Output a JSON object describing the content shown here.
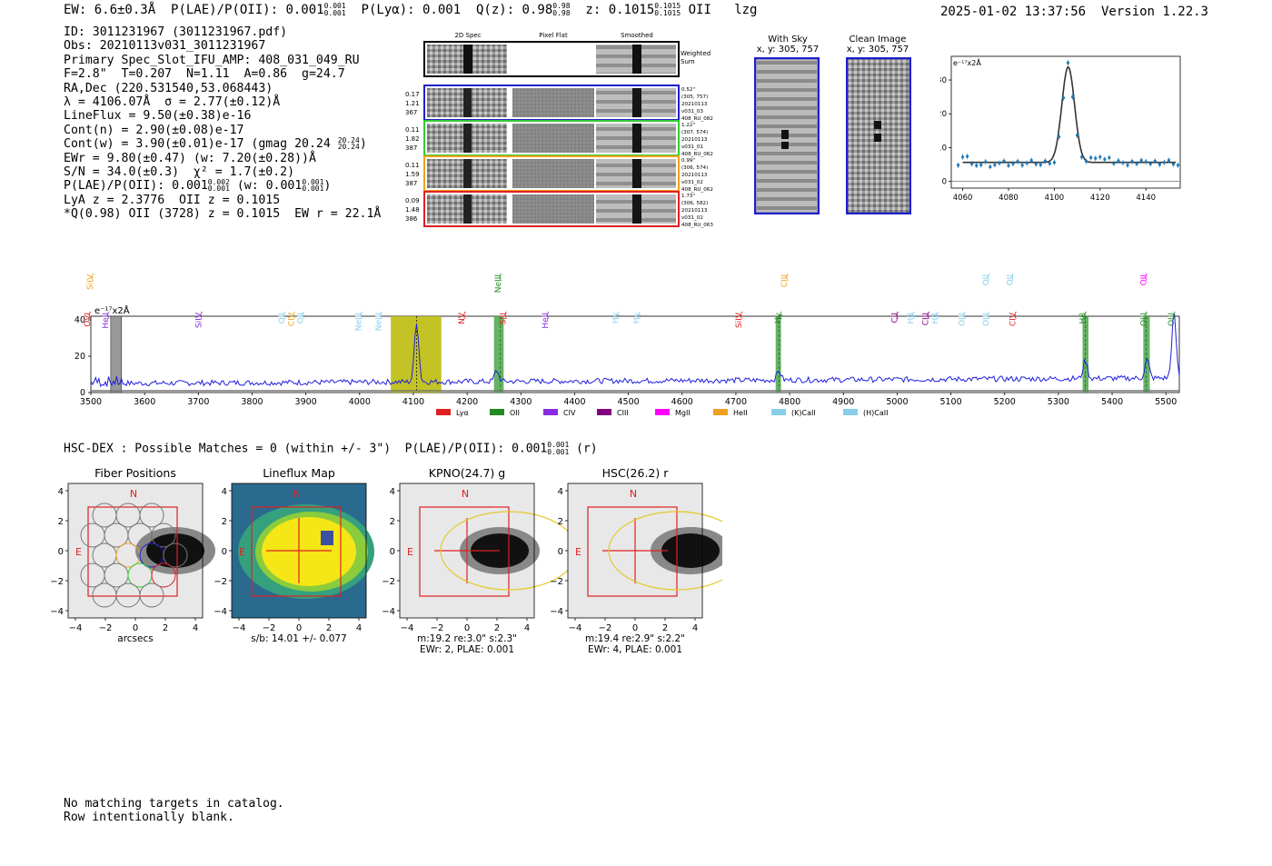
{
  "header": {
    "ew": "EW: 6.6±0.3Å",
    "plae": "P(LAE)/P(OII): 0.001",
    "plae_sup": "0.001",
    "plae_sub": "0.001",
    "plya": "P(Lyα): 0.001",
    "qz": "Q(z): 0.98",
    "qz_sup": "0.98",
    "qz_sub": "0.98",
    "z": "z: 0.1015",
    "z_sup": "0.1015",
    "z_sub": "0.1015",
    "line": "OII",
    "tag": "lzg",
    "timestamp": "2025-01-02 13:37:56",
    "version": "Version 1.22.3"
  },
  "info": {
    "id": "ID: 3011231967 (3011231967.pdf)",
    "obs": "Obs: 20210113v031_3011231967",
    "slot": "Primary Spec_Slot_IFU_AMP: 408_031_049_RU",
    "fwhm": "F=2.8\"  T=0.207  N=1.11  A=0.86  g=24.7",
    "radec": "RA,Dec (220.531540,53.068443)",
    "lambda": "λ = 4106.07Å  σ = 2.77(±0.12)Å",
    "flux": "LineFlux = 9.50(±0.38)e-16",
    "contn": "Cont(n) = 2.90(±0.08)e-17",
    "contw": "Cont(w) = 3.90(±0.01)e-17 (gmag 20.24",
    "contw_sup": "20.24",
    "contw_sub": "20.24",
    "ewr": "EWr = 9.80(±0.47) (w: 7.20(±0.28))Å",
    "sn": "S/N = 34.0(±0.3)  χ² = 1.7(±0.2)",
    "plae2": "P(LAE)/P(OII): 0.001",
    "plae2_a_sup": "0.002",
    "plae2_a_sub": "0.001",
    "plae2_w": "(w: 0.001",
    "plae2_b_sup": "0.001",
    "plae2_b_sub": "0.001",
    "lya": "LyA z = 2.3776  OII z = 0.1015",
    "qline": "*Q(0.98) OII (3728) z = 0.1015  EW r = 22.1Å"
  },
  "cutouts": {
    "col_2d": "2D Spec",
    "col_flat": "Pixel Flat",
    "col_smooth": "Smoothed",
    "weighted": "Weighted Sum",
    "rows": [
      {
        "w1": "0.17",
        "w2": "1.21",
        "w3": "367",
        "r1": "0.52\"",
        "r2": "(305, 757)",
        "r3": "20210113",
        "r4": "v031_03",
        "r5": "408_RU_082",
        "color": "#1f1fcc"
      },
      {
        "w1": "0.11",
        "w2": "1.82",
        "w3": "387",
        "r1": "1.22\"",
        "r2": "(307, 574)",
        "r3": "20210113",
        "r4": "v031_01",
        "r5": "408_RU_062",
        "color": "#33cc33"
      },
      {
        "w1": "0.11",
        "w2": "1.59",
        "w3": "387",
        "r1": "0.99\"",
        "r2": "(306, 574)",
        "r3": "20210113",
        "r4": "v031_02",
        "r5": "408_RU_062",
        "color": "#f0a020"
      },
      {
        "w1": "0.09",
        "w2": "1.48",
        "w3": "386",
        "r1": "1.73\"",
        "r2": "(306, 582)",
        "r3": "20210113",
        "r4": "v031_02",
        "r5": "408_RU_063",
        "color": "#e02020"
      }
    ]
  },
  "sky": {
    "title1": "With Sky",
    "title2": "x, y: 305, 757"
  },
  "clean": {
    "title1": "Clean Image",
    "title2": "x, y: 305, 757"
  },
  "chart_data": [
    {
      "type": "line",
      "title": "",
      "ylabel_units": "e⁻¹⁷x2Å",
      "xlim": [
        4055,
        4155
      ],
      "ylim": [
        -2,
        37
      ],
      "xticks": [
        "4060",
        "4080",
        "4100",
        "4120",
        "4140"
      ],
      "yticks": [
        "0",
        "10",
        "20",
        "30"
      ],
      "fit_center": 4106.07,
      "fit_sigma": 2.77,
      "fit_cont": 5.6,
      "fit_amp": 28.3,
      "x": [
        4058,
        4060,
        4062,
        4064,
        4066,
        4068,
        4070,
        4072,
        4074,
        4076,
        4078,
        4080,
        4082,
        4084,
        4086,
        4088,
        4090,
        4092,
        4094,
        4096,
        4098,
        4100,
        4102,
        4104,
        4106,
        4108,
        4110,
        4112,
        4114,
        4116,
        4118,
        4120,
        4122,
        4124,
        4126,
        4128,
        4130,
        4132,
        4134,
        4136,
        4138,
        4140,
        4142,
        4144,
        4146,
        4148,
        4150,
        4152,
        4154
      ],
      "y": [
        4.8,
        7.2,
        7.4,
        5.2,
        4.7,
        4.9,
        5.8,
        4.3,
        4.9,
        5.4,
        6.0,
        4.7,
        5.2,
        5.9,
        4.8,
        5.4,
        6.2,
        5.1,
        4.9,
        6.0,
        5.3,
        5.6,
        13.2,
        24.7,
        35.1,
        25.0,
        13.6,
        7.2,
        5.9,
        7.0,
        6.8,
        7.2,
        6.5,
        7.0,
        5.3,
        6.1,
        5.5,
        4.8,
        5.9,
        5.2,
        6.2,
        5.8,
        5.2,
        6.0,
        5.0,
        5.6,
        6.2,
        5.1,
        4.8
      ],
      "series_color": "#1f77b4"
    },
    {
      "type": "line",
      "title": "",
      "ylabel_units": "e⁻¹⁷x2Å",
      "xlim": [
        3500,
        5525
      ],
      "ylim": [
        0,
        42
      ],
      "xticks": [
        "3500",
        "3600",
        "3700",
        "3800",
        "3900",
        "4000",
        "4100",
        "4200",
        "4300",
        "4400",
        "4500",
        "4600",
        "4700",
        "4800",
        "4900",
        "5000",
        "5100",
        "5200",
        "5300",
        "5400",
        "5500"
      ],
      "yticks": [
        "0",
        "20",
        "40"
      ],
      "peaks": [
        {
          "x": 4106,
          "h": 33
        },
        {
          "x": 4255,
          "h": 6
        },
        {
          "x": 4780,
          "h": 5
        },
        {
          "x": 5350,
          "h": 10
        },
        {
          "x": 5465,
          "h": 10
        },
        {
          "x": 5515,
          "h": 35
        }
      ],
      "base_level": 7,
      "highlights": [
        {
          "x0": 4058,
          "x1": 4152,
          "color": "#b8b800"
        },
        {
          "x0": 4250,
          "x1": 4268,
          "color": "#4aa64a"
        },
        {
          "x0": 4774,
          "x1": 4784,
          "color": "#4aa64a"
        },
        {
          "x0": 5345,
          "x1": 5356,
          "color": "#4aa64a"
        },
        {
          "x0": 5458,
          "x1": 5470,
          "color": "#4aa64a"
        }
      ],
      "greyband": {
        "x0": 3537,
        "x1": 3557
      },
      "lines_upper": [
        {
          "name": "SiIV",
          "x": 3503,
          "color": "#f0a020"
        },
        {
          "name": "NeIII",
          "x": 4262,
          "color": "#228b22"
        },
        {
          "name": "CIII",
          "x": 4795,
          "color": "#f0a020"
        },
        {
          "name": "OII",
          "x": 5170,
          "color": "#87ceeb"
        },
        {
          "name": "OII",
          "x": 5215,
          "color": "#87ceeb"
        },
        {
          "name": "OII",
          "x": 5463,
          "color": "#ff00ff"
        }
      ],
      "lines_lower": [
        {
          "name": "OVI",
          "x": 3498,
          "color": "#e02020"
        },
        {
          "name": "HeII",
          "x": 3532,
          "color": "#8a2be2"
        },
        {
          "name": "SiIV",
          "x": 3705,
          "color": "#8a2be2"
        },
        {
          "name": "OII",
          "x": 3860,
          "color": "#87ceeb"
        },
        {
          "name": "CIV",
          "x": 3878,
          "color": "#f0a020"
        },
        {
          "name": "OII",
          "x": 3895,
          "color": "#87ceeb"
        },
        {
          "name": "NeIII",
          "x": 4003,
          "color": "#87ceeb"
        },
        {
          "name": "NeIII",
          "x": 4040,
          "color": "#87ceeb"
        },
        {
          "name": "NV",
          "x": 4195,
          "color": "#e02020"
        },
        {
          "name": "SiII",
          "x": 4272,
          "color": "#e02020"
        },
        {
          "name": "HeII",
          "x": 4350,
          "color": "#8a2be2"
        },
        {
          "name": "Hγ",
          "x": 4480,
          "color": "#87ceeb"
        },
        {
          "name": "Hγ",
          "x": 4520,
          "color": "#87ceeb"
        },
        {
          "name": "SiIV",
          "x": 4710,
          "color": "#e02020"
        },
        {
          "name": "Hγ",
          "x": 4783,
          "color": "#228b22"
        },
        {
          "name": "CII",
          "x": 5000,
          "color": "#800080"
        },
        {
          "name": "Hβ",
          "x": 5030,
          "color": "#87ceeb"
        },
        {
          "name": "CIII",
          "x": 5058,
          "color": "#800080"
        },
        {
          "name": "Hβ",
          "x": 5075,
          "color": "#87ceeb"
        },
        {
          "name": "OIII",
          "x": 5125,
          "color": "#87ceeb"
        },
        {
          "name": "OIII",
          "x": 5170,
          "color": "#87ceeb"
        },
        {
          "name": "CIV",
          "x": 5220,
          "color": "#e02020"
        },
        {
          "name": "Hβ",
          "x": 5350,
          "color": "#228b22"
        },
        {
          "name": "OIII",
          "x": 5463,
          "color": "#228b22"
        },
        {
          "name": "OIII",
          "x": 5515,
          "color": "#228b22"
        }
      ],
      "legend": [
        {
          "label": "Lyα",
          "color": "#e02020"
        },
        {
          "label": "OII",
          "color": "#228b22"
        },
        {
          "label": "CIV",
          "color": "#8a2be2"
        },
        {
          "label": "CIII",
          "color": "#800080"
        },
        {
          "label": "MgII",
          "color": "#ff00ff"
        },
        {
          "label": "HeII",
          "color": "#f0a020"
        },
        {
          "label": "(K)CaII",
          "color": "#87ceeb"
        },
        {
          "label": "(H)CaII",
          "color": "#87ceeb"
        }
      ]
    }
  ],
  "hsc": {
    "text": "HSC-DEX : Possible Matches = 0 (within +/- 3\")  P(LAE)/P(OII): 0.001",
    "sup": "0.001",
    "sub": "0.001",
    "suffix": "(r)"
  },
  "panels": [
    {
      "title": "Fiber Positions",
      "xlabel": "arcsecs",
      "extra": "",
      "extra2": ""
    },
    {
      "title": "Lineflux Map",
      "xlabel": "s/b: 14.01 +/- 0.077",
      "extra": "",
      "extra2": ""
    },
    {
      "title": "KPNO(24.7) g",
      "xlabel": "m:19.2  re:3.0\"  s:2.3\"",
      "extra": "EWr: 2, PLAE: 0.001",
      "extra2": ""
    },
    {
      "title": "HSC(26.2) r",
      "xlabel": "m:19.4  re:2.9\"  s:2.2\"",
      "extra": "EWr: 4, PLAE: 0.001",
      "extra2": ""
    }
  ],
  "panel_ticks": [
    "−4",
    "−2",
    "0",
    "2",
    "4"
  ],
  "panel_labels": {
    "n": "N",
    "e": "E"
  },
  "footer": {
    "line1": "No matching targets in catalog.",
    "line2": "Row intentionally blank."
  }
}
